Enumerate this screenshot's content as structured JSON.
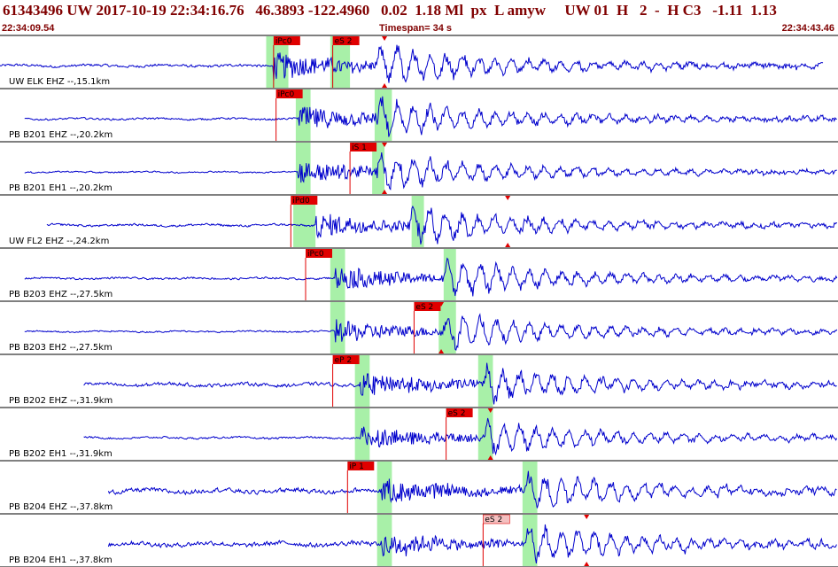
{
  "header": {
    "event_line": "61343496 UW 2017-10-19 22:34:16.76   46.3893 -122.4960   0.02  1.18 Ml  px  L amyw     UW 01  H   2  -  H C3   -1.11  1.13",
    "start_time": "22:34:09.54",
    "timespan": "Timespan=  34 s",
    "end_time": "22:34:43.46"
  },
  "colors": {
    "trace": "#0000cc",
    "pick_box": "#e00000",
    "pick_box_alt": "#f4c0c0",
    "window": "#a8f0a8",
    "text": "#800000"
  },
  "chart_data": {
    "type": "line",
    "title": "",
    "xlabel": "",
    "ylabel": "",
    "x_range_s": [
      0,
      34
    ],
    "traces": [
      {
        "label": "UW ELK EHZ --,15.1km",
        "start": 0,
        "end": 33.4,
        "noise": 0.07,
        "p_arr": 11.1,
        "s_arr": 15.3,
        "amp": 0.95,
        "picks": [
          {
            "text": "iPc0",
            "t": 11.1
          },
          {
            "text": "eS 2",
            "t": 13.5
          }
        ],
        "windows": [
          [
            10.8,
            11.7
          ],
          [
            13.4,
            14.2
          ]
        ],
        "red_markers": [
          15.6
        ]
      },
      {
        "label": "PB B201 EHZ --,20.2km",
        "start": 1.0,
        "end": 34.4,
        "noise": 0.05,
        "p_arr": 12.1,
        "s_arr": 15.3,
        "amp": 0.9,
        "picks": [
          {
            "text": "iPc0",
            "t": 11.2
          }
        ],
        "windows": [
          [
            12.0,
            12.6
          ],
          [
            15.2,
            15.9
          ]
        ],
        "red_markers": []
      },
      {
        "label": "PB B201 EH1 --,20.2km",
        "start": 1.0,
        "end": 34.4,
        "noise": 0.04,
        "p_arr": 12.1,
        "s_arr": 15.3,
        "amp": 0.8,
        "picks": [
          {
            "text": "iS 1",
            "t": 14.2
          }
        ],
        "windows": [
          [
            12.0,
            12.6
          ],
          [
            15.1,
            15.6
          ]
        ],
        "red_markers": [
          15.6
        ]
      },
      {
        "label": "UW FL2 EHZ --,24.2km",
        "start": 1.9,
        "end": 35.3,
        "noise": 0.06,
        "p_arr": 12.8,
        "s_arr": 16.6,
        "amp": 0.85,
        "picks": [
          {
            "text": "iPd0",
            "t": 11.8
          }
        ],
        "windows": [
          [
            11.9,
            12.8
          ],
          [
            16.7,
            17.2
          ]
        ],
        "red_markers": [
          20.6
        ]
      },
      {
        "label": "PB B203 EHZ --,27.5km",
        "start": 1.0,
        "end": 34.4,
        "noise": 0.05,
        "p_arr": 13.6,
        "s_arr": 18.0,
        "amp": 0.85,
        "picks": [
          {
            "text": "iPc0",
            "t": 12.4
          }
        ],
        "windows": [
          [
            13.4,
            14.0
          ],
          [
            18.0,
            18.5
          ]
        ],
        "red_markers": []
      },
      {
        "label": "PB B203 EH2 --,27.5km",
        "start": 1.0,
        "end": 34.4,
        "noise": 0.04,
        "p_arr": 13.6,
        "s_arr": 18.0,
        "amp": 0.8,
        "picks": [
          {
            "text": "eS 2",
            "t": 16.8
          }
        ],
        "windows": [
          [
            13.4,
            14.0
          ],
          [
            17.8,
            18.5
          ]
        ],
        "red_markers": [
          17.9
        ]
      },
      {
        "label": "PB B202 EHZ --,31.9km",
        "start": 3.4,
        "end": 36.8,
        "noise": 0.09,
        "p_arr": 14.6,
        "s_arr": 19.6,
        "amp": 0.8,
        "picks": [
          {
            "text": "eP 2",
            "t": 13.5
          }
        ],
        "windows": [
          [
            14.4,
            15.0
          ],
          [
            19.4,
            20.0
          ]
        ],
        "red_markers": []
      },
      {
        "label": "PB B202 EH1 --,31.9km",
        "start": 3.4,
        "end": 36.8,
        "noise": 0.05,
        "p_arr": 14.6,
        "s_arr": 19.6,
        "amp": 0.8,
        "picks": [
          {
            "text": "eS 2",
            "t": 18.1
          }
        ],
        "windows": [
          [
            14.4,
            15.0
          ],
          [
            19.4,
            20.0
          ]
        ],
        "red_markers": [
          19.9
        ]
      },
      {
        "label": "PB B204 EHZ --,37.8km",
        "start": 4.4,
        "end": 37.8,
        "noise": 0.12,
        "p_arr": 15.4,
        "s_arr": 21.3,
        "amp": 0.85,
        "picks": [
          {
            "text": "iP 1",
            "t": 14.1
          }
        ],
        "windows": [
          [
            15.3,
            15.9
          ],
          [
            21.2,
            21.8
          ]
        ],
        "red_markers": []
      },
      {
        "label": "PB B204 EH1 --,37.8km",
        "start": 4.4,
        "end": 37.8,
        "noise": 0.12,
        "p_arr": 15.4,
        "s_arr": 21.3,
        "amp": 0.85,
        "picks": [
          {
            "text": "eS 2",
            "t": 19.6
          }
        ],
        "windows": [
          [
            15.3,
            15.9
          ],
          [
            21.2,
            21.8
          ]
        ],
        "red_markers": [
          23.8
        ]
      }
    ]
  }
}
